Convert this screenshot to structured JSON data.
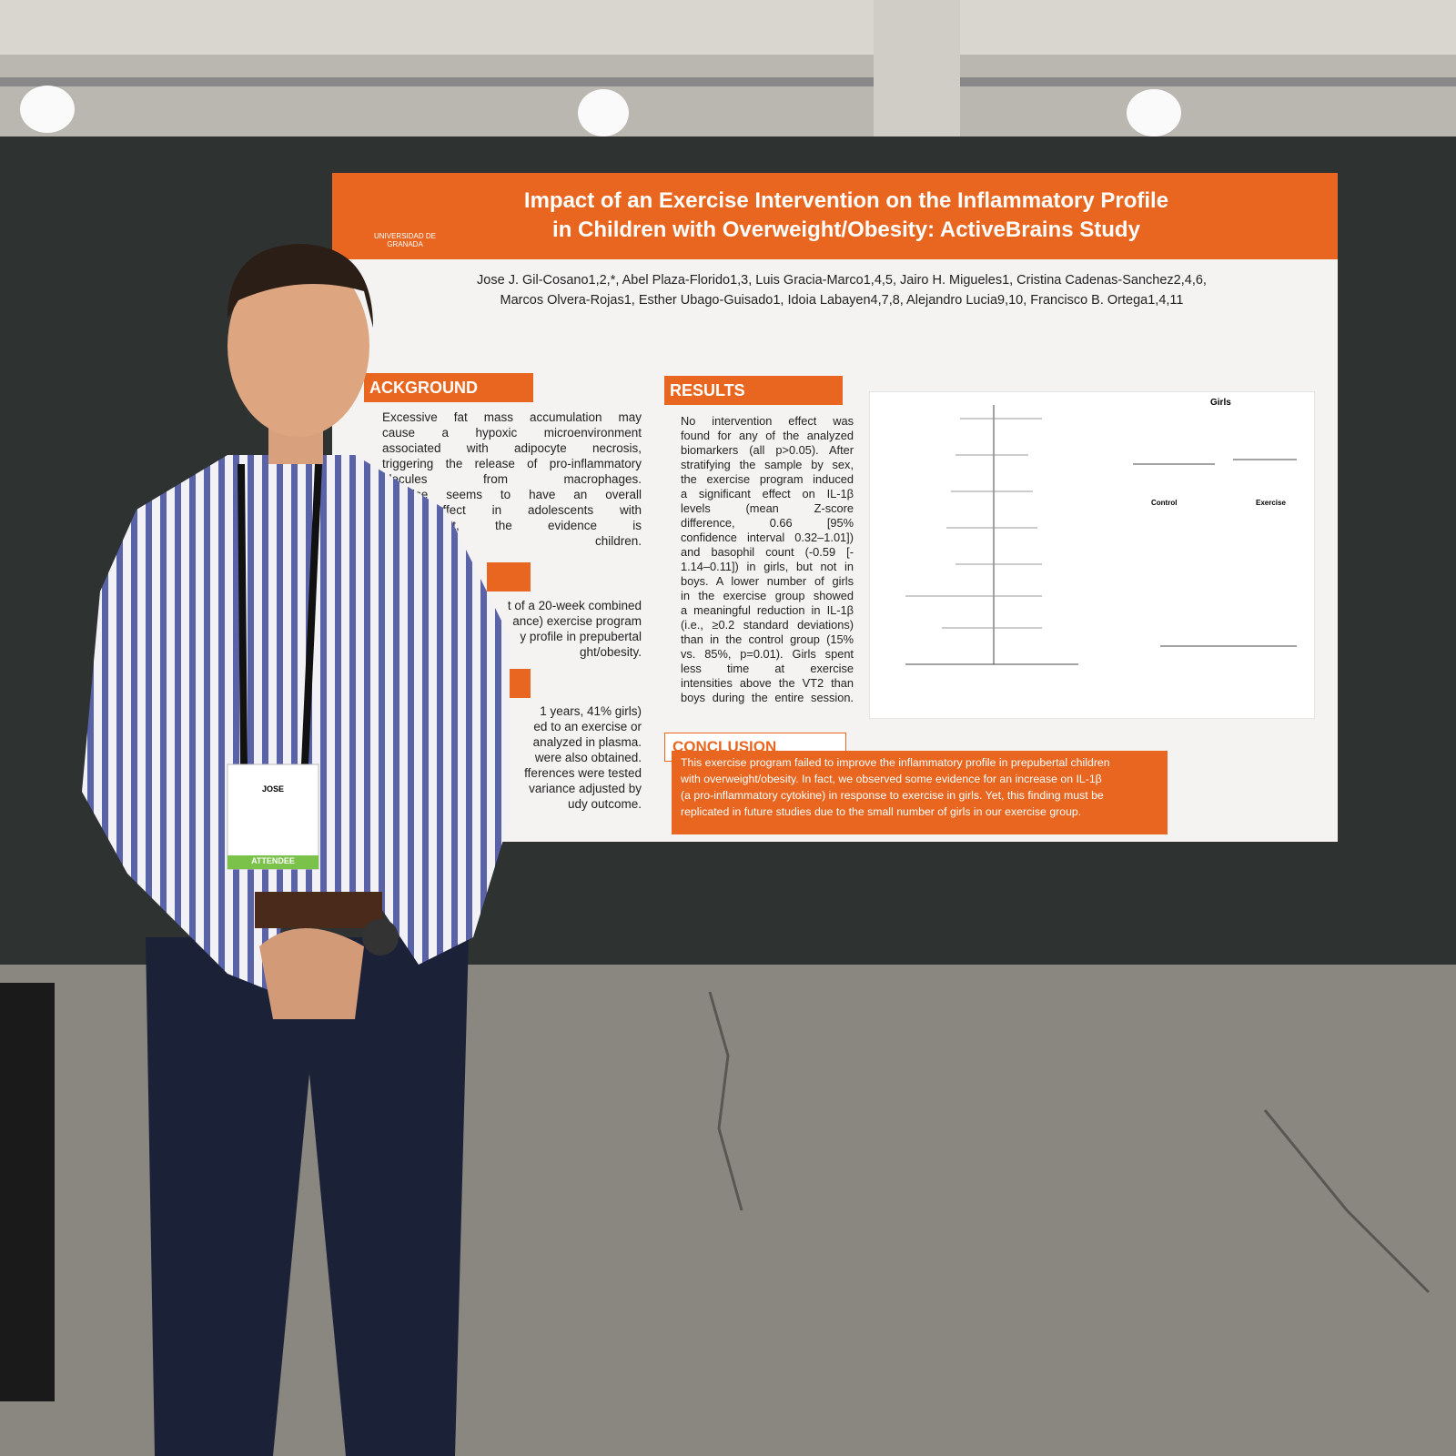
{
  "poster": {
    "institution": "UNIVERSIDAD DE GRANADA",
    "title": [
      "Impact of an Exercise Intervention on the Inflammatory Profile",
      "in Children with Overweight/Obesity: ActiveBrains Study"
    ],
    "authors": [
      "Jose J. Gil-Cosano1,2,*, Abel Plaza-Florido1,3, Luis Gracia-Marco1,4,5, Jairo H. Migueles1, Cristina Cadenas-Sanchez2,4,6,",
      "Marcos Olvera-Rojas1, Esther Ubago-Guisado1, Idoia Labayen4,7,8, Alejandro Lucia9,10, Francisco B. Ortega1,4,11"
    ],
    "background": {
      "heading": "ACKGROUND",
      "lines": [
        "Excessive fat mass accumulation may",
        "cause a hypoxic microenvironment",
        "associated with adipocyte necrosis,",
        "triggering the release of pro-inflammatory",
        "olecules from macrophages.",
        "exercise seems to have an overall",
        "atory effect in adolescents with",
        "sity. Yet, the evidence is",
        "prepubertal children."
      ]
    },
    "objective": {
      "lines": [
        "t of a 20-week combined",
        "ance) exercise program",
        "y profile in prepubertal",
        "ght/obesity."
      ]
    },
    "methods": {
      "lines": [
        "1 years, 41% girls)",
        "ed to an exercise or",
        "analyzed in plasma.",
        "were also obtained.",
        "fferences were tested",
        "variance adjusted by",
        "udy outcome."
      ]
    },
    "results": {
      "heading": "RESULTS",
      "lines": [
        "No intervention effect was",
        "found for any of the analyzed",
        "biomarkers (all p>0.05). After",
        "stratifying the sample by sex,",
        "the exercise program induced",
        "a significant effect on IL-1β",
        "levels (mean Z-score",
        "difference, 0.66 [95%",
        "confidence interval 0.32–1.01])",
        "and basophil count (-0.59 [-",
        "1.14–0.11]) in girls, but not in",
        "boys. A lower number of girls",
        "in the exercise group showed",
        "a meaningful reduction in IL-1β",
        "(i.e., ≥0.2 standard deviations)",
        "than in the control group (15%",
        "vs. 85%, p=0.01). Girls spent",
        "less time at exercise",
        "intensities above the VT2 than",
        "boys during the entire session."
      ],
      "figure_labels": [
        "Girls",
        "Control",
        "Exercise"
      ]
    },
    "conclusion": {
      "heading": "CONCLUSION",
      "lines": [
        "This exercise program failed to improve the inflammatory profile in prepubertal children",
        "with overweight/obesity. In fact, we observed some evidence for an increase on IL-1β",
        "(a pro-inflammatory cytokine) in response to exercise in girls. Yet, this finding must be",
        "replicated in future studies due to the small number of girls in our exercise group."
      ]
    }
  },
  "badge": {
    "name": "JOSE",
    "role": "ATTENDEE"
  }
}
